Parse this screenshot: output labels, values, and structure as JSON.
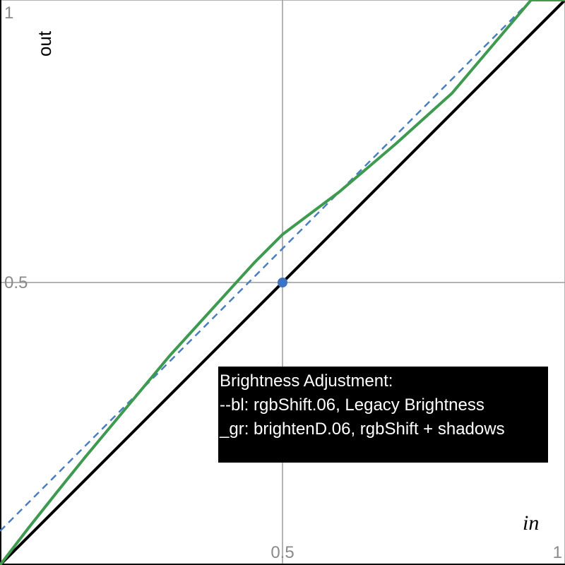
{
  "chart_data": {
    "type": "line",
    "xlabel": "in",
    "ylabel": "out",
    "xlim": [
      0,
      1
    ],
    "ylim": [
      0,
      1
    ],
    "grid": true,
    "x_ticks": [
      {
        "value": 0.5,
        "label": "0.5"
      },
      {
        "value": 1,
        "label": "1"
      }
    ],
    "y_ticks": [
      {
        "value": 0.5,
        "label": "0.5"
      },
      {
        "value": 1,
        "label": "1"
      }
    ],
    "series": [
      {
        "style": "solid",
        "color": "#000000",
        "x": [
          0,
          1
        ],
        "y": [
          0,
          1
        ]
      },
      {
        "style": "dashed",
        "color": "#4a7fbf",
        "x": [
          0,
          0.94
        ],
        "y": [
          0.06,
          1.0
        ]
      },
      {
        "style": "solid",
        "color": "#3d9a4f",
        "x": [
          0,
          0.05,
          0.1,
          0.15,
          0.2,
          0.25,
          0.3,
          0.35,
          0.4,
          0.45,
          0.5,
          0.6,
          0.7,
          0.8,
          0.94,
          1.0
        ],
        "y": [
          0,
          0.065,
          0.128,
          0.19,
          0.25,
          0.31,
          0.37,
          0.425,
          0.48,
          0.535,
          0.585,
          0.66,
          0.745,
          0.835,
          1.0,
          1.0
        ]
      }
    ],
    "points": [
      {
        "x": 0.5,
        "y": 0.5,
        "color": "#3d74c4"
      }
    ],
    "annotation": {
      "lines": [
        "Brightness Adjustment:",
        "--bl: rgbShift.06, Legacy Brightness",
        "_gr: brightenD.06, rgbShift + shadows"
      ]
    }
  }
}
